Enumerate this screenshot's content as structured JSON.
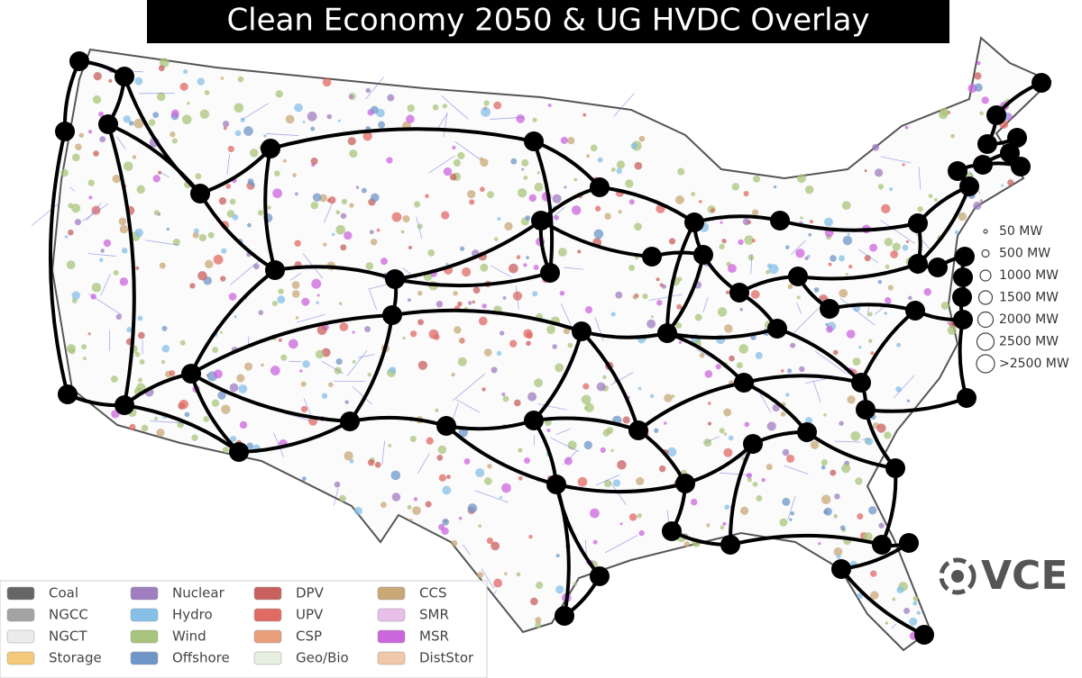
{
  "title": "Clean Economy 2050 & UG HVDC Overlay",
  "legend": {
    "items": [
      {
        "label": "Coal",
        "color": "#666666"
      },
      {
        "label": "Nuclear",
        "color": "#a07cc0"
      },
      {
        "label": "DPV",
        "color": "#c8605e"
      },
      {
        "label": "CCS",
        "color": "#c9a878"
      },
      {
        "label": "NGCC",
        "color": "#a3a3a3"
      },
      {
        "label": "Hydro",
        "color": "#86bfe8"
      },
      {
        "label": "UPV",
        "color": "#e06a64"
      },
      {
        "label": "SMR",
        "color": "#e8bfe8"
      },
      {
        "label": "NGCT",
        "color": "#ececec"
      },
      {
        "label": "Wind",
        "color": "#a9c47c"
      },
      {
        "label": "CSP",
        "color": "#e99e7a"
      },
      {
        "label": "MSR",
        "color": "#cc66dd"
      },
      {
        "label": "Storage",
        "color": "#f5c97a"
      },
      {
        "label": "Offshore",
        "color": "#6f95c9"
      },
      {
        "label": "Geo/Bio",
        "color": "#e6efe0"
      },
      {
        "label": "DistStor",
        "color": "#f0c7a8"
      }
    ]
  },
  "size_legend": [
    "50 MW",
    "500 MW",
    "1000 MW",
    "1500 MW",
    "2000 MW",
    "2500 MW",
    ">2500 MW"
  ],
  "logo": "VCE"
}
